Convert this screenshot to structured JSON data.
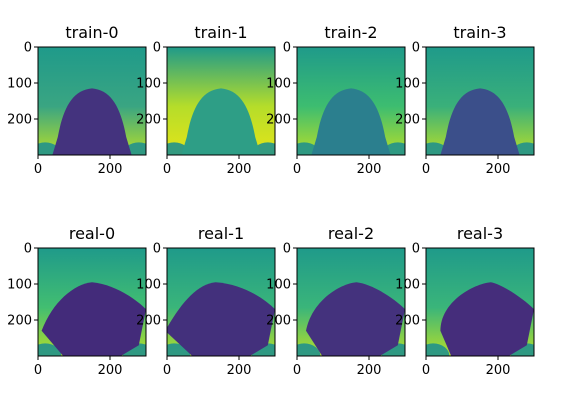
{
  "chart_data": {
    "type": "heatmap",
    "colormap": "viridis",
    "image_extent": {
      "x": [
        0,
        300
      ],
      "y": [
        0,
        300
      ]
    },
    "x_ticks": [
      0,
      200
    ],
    "y_ticks": [
      0,
      100,
      200
    ],
    "y_axis_inverted": true,
    "grid": false,
    "panels": [
      {
        "title": "train-0",
        "row": 0,
        "col": 0,
        "background": "#3aa582",
        "object": "#44337e",
        "variant": "train",
        "lean": 0
      },
      {
        "title": "train-1",
        "row": 0,
        "col": 1,
        "background": "#b5dd2a",
        "object": "#2e9e86",
        "variant": "train",
        "lean": 0
      },
      {
        "title": "train-2",
        "row": 0,
        "col": 2,
        "background": "#3dbd70",
        "object": "#2b7f8e",
        "variant": "train",
        "lean": 0
      },
      {
        "title": "train-3",
        "row": 0,
        "col": 3,
        "background": "#3ab07a",
        "object": "#3b4f8a",
        "variant": "train",
        "lean": 0
      },
      {
        "title": "real-0",
        "row": 1,
        "col": 0,
        "background": "#42be71",
        "object": "#432b7a",
        "variant": "real",
        "lean": 0
      },
      {
        "title": "real-1",
        "row": 1,
        "col": 1,
        "background": "#3ab57a",
        "object": "#43307c",
        "variant": "real",
        "lean": -1
      },
      {
        "title": "real-2",
        "row": 1,
        "col": 2,
        "background": "#3ab57a",
        "object": "#44327d",
        "variant": "real",
        "lean": 1
      },
      {
        "title": "real-3",
        "row": 1,
        "col": 3,
        "background": "#3ab57a",
        "object": "#452d7b",
        "variant": "real",
        "lean": 2
      }
    ]
  }
}
